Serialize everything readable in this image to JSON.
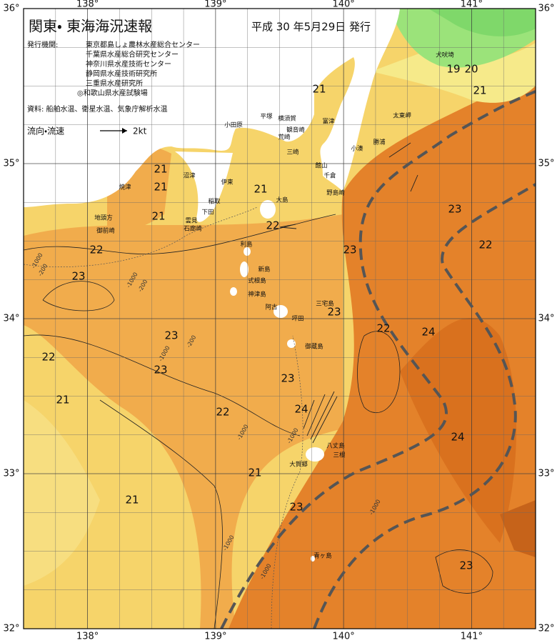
{
  "header": {
    "title": "関東・ 東海海況速報",
    "date": "平成 30 年5月29日 発行"
  },
  "info": {
    "agencies_label": "発行機関:",
    "agencies": [
      "東京都島しょ農林水産総合センター",
      "千葉県水産総合研究センター",
      "神奈川県水産技術センター",
      "静岡県水産技術研究所",
      "三重県水産研究所",
      "◎和歌山県水産試験場"
    ],
    "source": "資料: 船舶水温、衛星水温、気象庁解析水温",
    "legend_label": "流向・流速",
    "legend_speed": "2kt"
  },
  "map": {
    "lon_ticks": [
      {
        "value": 138,
        "label": "138°"
      },
      {
        "value": 139,
        "label": "139°"
      },
      {
        "value": 140,
        "label": "140°"
      },
      {
        "value": 141,
        "label": "141°"
      }
    ],
    "lat_ticks": [
      {
        "value": 36,
        "label": "36°"
      },
      {
        "value": 35,
        "label": "35°"
      },
      {
        "value": 34,
        "label": "34°"
      },
      {
        "value": 33,
        "label": "33°"
      },
      {
        "value": 32,
        "label": "32°"
      }
    ],
    "isotherm_labels": [
      21,
      21,
      21,
      21,
      21,
      21,
      19,
      20,
      22,
      22,
      23,
      23,
      23,
      22,
      24,
      23,
      23,
      22,
      21,
      23,
      22,
      24,
      24,
      23,
      22,
      21,
      21,
      23,
      23
    ],
    "depth_labels": [
      -1000,
      -200,
      -1000,
      -200,
      -1000,
      -200,
      -1000,
      -1000,
      -1000,
      -1000,
      -1000
    ],
    "places": [
      "犬吠埼",
      "太東岬",
      "勝浦",
      "小湊",
      "千倉",
      "館山",
      "野島崎",
      "富津",
      "横須賀",
      "観音崎",
      "荒崎",
      "三崎",
      "平塚",
      "小田原",
      "伊東",
      "稲取",
      "下田",
      "雲見",
      "石廊崎",
      "沼津",
      "焼津",
      "地頭方",
      "御前崎",
      "大島",
      "利島",
      "新島",
      "式根島",
      "神津島",
      "三宅島",
      "阿古",
      "坪田",
      "御蔵島",
      "八丈島",
      "三根",
      "大賀郷",
      "青ヶ島"
    ]
  }
}
